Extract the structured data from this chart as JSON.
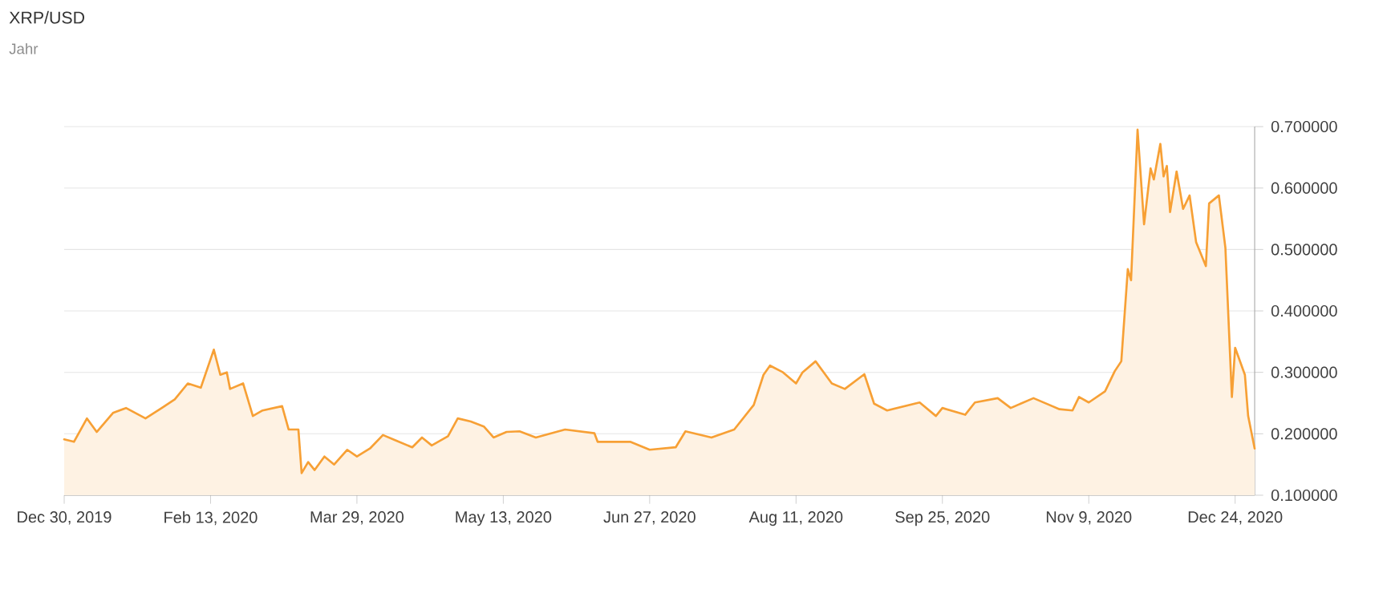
{
  "chart_data": {
    "type": "area",
    "title": "XRP/USD",
    "subtitle": "Jahr",
    "color": "#f7a035",
    "x": [
      "2019-12-30",
      "2020-01-02",
      "2020-01-06",
      "2020-01-09",
      "2020-01-14",
      "2020-01-18",
      "2020-01-24",
      "2020-01-29",
      "2020-02-02",
      "2020-02-06",
      "2020-02-10",
      "2020-02-14",
      "2020-02-16",
      "2020-02-18",
      "2020-02-19",
      "2020-02-23",
      "2020-02-26",
      "2020-02-29",
      "2020-03-06",
      "2020-03-08",
      "2020-03-11",
      "2020-03-12",
      "2020-03-14",
      "2020-03-16",
      "2020-03-19",
      "2020-03-22",
      "2020-03-26",
      "2020-03-29",
      "2020-04-02",
      "2020-04-06",
      "2020-04-10",
      "2020-04-15",
      "2020-04-18",
      "2020-04-21",
      "2020-04-26",
      "2020-04-29",
      "2020-05-03",
      "2020-05-07",
      "2020-05-10",
      "2020-05-14",
      "2020-05-18",
      "2020-05-23",
      "2020-06-01",
      "2020-06-10",
      "2020-06-11",
      "2020-06-21",
      "2020-06-27",
      "2020-07-05",
      "2020-07-08",
      "2020-07-16",
      "2020-07-23",
      "2020-07-29",
      "2020-08-01",
      "2020-08-03",
      "2020-08-07",
      "2020-08-11",
      "2020-08-13",
      "2020-08-17",
      "2020-08-22",
      "2020-08-26",
      "2020-09-01",
      "2020-09-04",
      "2020-09-08",
      "2020-09-18",
      "2020-09-23",
      "2020-09-25",
      "2020-10-02",
      "2020-10-05",
      "2020-10-12",
      "2020-10-16",
      "2020-10-23",
      "2020-10-31",
      "2020-11-04",
      "2020-11-06",
      "2020-11-09",
      "2020-11-14",
      "2020-11-17",
      "2020-11-19",
      "2020-11-21",
      "2020-11-22",
      "2020-11-24",
      "2020-11-26",
      "2020-11-28",
      "2020-11-29",
      "2020-12-01",
      "2020-12-02",
      "2020-12-03",
      "2020-12-04",
      "2020-12-06",
      "2020-12-08",
      "2020-12-10",
      "2020-12-12",
      "2020-12-15",
      "2020-12-16",
      "2020-12-19",
      "2020-12-21",
      "2020-12-23",
      "2020-12-24",
      "2020-12-27",
      "2020-12-28",
      "2020-12-30"
    ],
    "values": [
      0.191,
      0.187,
      0.225,
      0.203,
      0.234,
      0.242,
      0.225,
      0.242,
      0.256,
      0.282,
      0.275,
      0.337,
      0.296,
      0.3,
      0.273,
      0.282,
      0.229,
      0.238,
      0.245,
      0.207,
      0.207,
      0.136,
      0.154,
      0.141,
      0.163,
      0.15,
      0.174,
      0.163,
      0.176,
      0.198,
      0.189,
      0.178,
      0.194,
      0.181,
      0.196,
      0.225,
      0.22,
      0.212,
      0.194,
      0.203,
      0.204,
      0.194,
      0.207,
      0.201,
      0.187,
      0.187,
      0.174,
      0.178,
      0.204,
      0.194,
      0.207,
      0.247,
      0.296,
      0.311,
      0.3,
      0.282,
      0.3,
      0.318,
      0.282,
      0.273,
      0.297,
      0.249,
      0.238,
      0.251,
      0.229,
      0.242,
      0.231,
      0.251,
      0.258,
      0.242,
      0.258,
      0.24,
      0.238,
      0.26,
      0.251,
      0.269,
      0.302,
      0.318,
      0.468,
      0.45,
      0.695,
      0.541,
      0.632,
      0.614,
      0.672,
      0.619,
      0.636,
      0.561,
      0.627,
      0.566,
      0.588,
      0.512,
      0.473,
      0.575,
      0.588,
      0.503,
      0.26,
      0.34,
      0.296,
      0.229,
      0.176
    ],
    "xlim": [
      "2019-12-30",
      "2020-12-30"
    ],
    "xticks": [
      {
        "value": "2019-12-30",
        "label": "Dec 30, 2019"
      },
      {
        "value": "2020-02-13",
        "label": "Feb 13, 2020"
      },
      {
        "value": "2020-03-29",
        "label": "Mar 29, 2020"
      },
      {
        "value": "2020-05-13",
        "label": "May 13, 2020"
      },
      {
        "value": "2020-06-27",
        "label": "Jun 27, 2020"
      },
      {
        "value": "2020-08-11",
        "label": "Aug 11, 2020"
      },
      {
        "value": "2020-09-25",
        "label": "Sep 25, 2020"
      },
      {
        "value": "2020-11-09",
        "label": "Nov 9, 2020"
      },
      {
        "value": "2020-12-24",
        "label": "Dec 24, 2020"
      }
    ],
    "ylim": [
      0.1,
      0.7
    ],
    "yticks": [
      {
        "value": 0.1,
        "label": "0.100000"
      },
      {
        "value": 0.2,
        "label": "0.200000"
      },
      {
        "value": 0.3,
        "label": "0.300000"
      },
      {
        "value": 0.4,
        "label": "0.400000"
      },
      {
        "value": 0.5,
        "label": "0.500000"
      },
      {
        "value": 0.6,
        "label": "0.600000"
      },
      {
        "value": 0.7,
        "label": "0.700000"
      }
    ],
    "grid": "y"
  }
}
